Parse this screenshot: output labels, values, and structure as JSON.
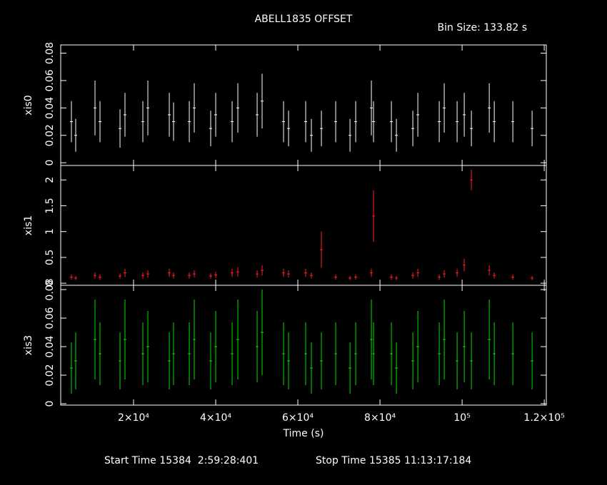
{
  "chart_data": {
    "type": "errorbar",
    "title": "ABELL1835 OFFSET",
    "subtitle": "Bin Size: 133.82 s",
    "xlabel": "Time (s)",
    "start_time": "Start Time 15384  2:59:28:401",
    "stop_time": "Stop Time 15385 11:13:17:184",
    "xlim": [
      2260,
      120500
    ],
    "xticks": [
      {
        "value": 20000,
        "label": "2×10⁴"
      },
      {
        "value": 40000,
        "label": "4×10⁴"
      },
      {
        "value": 60000,
        "label": "6×10⁴"
      },
      {
        "value": 80000,
        "label": "8×10⁴"
      },
      {
        "value": 100000,
        "label": "10⁵"
      },
      {
        "value": 120000,
        "label": "1.2×10⁵"
      }
    ],
    "x": [
      4870,
      5910,
      10610,
      11830,
      16700,
      17910,
      22260,
      23480,
      28700,
      29740,
      33570,
      34780,
      38780,
      40000,
      44000,
      45390,
      50090,
      51300,
      56520,
      57740,
      61910,
      63300,
      65740,
      69220,
      72700,
      74090,
      77910,
      78430,
      82780,
      84000,
      88000,
      89220,
      94430,
      95650,
      98780,
      100520,
      102260,
      106610,
      107830,
      112350,
      117040
    ],
    "panels": [
      {
        "ylabel": "xis0",
        "color": "#ffffff",
        "ylim": [
          -0.002,
          0.086
        ],
        "yticks": [
          0,
          0.02,
          0.04,
          0.06,
          0.08
        ],
        "values": [
          0.03,
          0.02,
          0.04,
          0.03,
          0.025,
          0.035,
          0.03,
          0.04,
          0.035,
          0.03,
          0.03,
          0.04,
          0.025,
          0.035,
          0.03,
          0.04,
          0.035,
          0.045,
          0.03,
          0.025,
          0.03,
          0.02,
          0.025,
          0.03,
          0.02,
          0.03,
          0.04,
          0.03,
          0.03,
          0.02,
          0.025,
          0.035,
          0.03,
          0.04,
          0.03,
          0.035,
          0.025,
          0.04,
          0.03,
          0.03,
          0.025
        ],
        "errors": [
          0.015,
          0.012,
          0.02,
          0.015,
          0.014,
          0.016,
          0.015,
          0.02,
          0.016,
          0.014,
          0.015,
          0.018,
          0.013,
          0.016,
          0.015,
          0.018,
          0.016,
          0.02,
          0.015,
          0.013,
          0.015,
          0.012,
          0.013,
          0.015,
          0.012,
          0.015,
          0.02,
          0.015,
          0.015,
          0.012,
          0.013,
          0.016,
          0.015,
          0.018,
          0.015,
          0.016,
          0.013,
          0.018,
          0.015,
          0.015,
          0.013
        ]
      },
      {
        "ylabel": "xis1",
        "color": "#ff2020",
        "ylim": [
          -0.04,
          2.28
        ],
        "yticks": [
          0,
          0.5,
          1,
          1.5,
          2
        ],
        "values": [
          0.12,
          0.1,
          0.15,
          0.12,
          0.14,
          0.2,
          0.15,
          0.18,
          0.2,
          0.15,
          0.15,
          0.18,
          0.14,
          0.16,
          0.2,
          0.22,
          0.18,
          0.25,
          0.2,
          0.18,
          0.2,
          0.15,
          0.65,
          0.12,
          0.1,
          0.12,
          0.2,
          1.3,
          0.12,
          0.1,
          0.15,
          0.2,
          0.12,
          0.18,
          0.2,
          0.35,
          2.0,
          0.25,
          0.15,
          0.12,
          0.1
        ],
        "errors": [
          0.05,
          0.04,
          0.06,
          0.05,
          0.05,
          0.08,
          0.06,
          0.07,
          0.08,
          0.06,
          0.06,
          0.07,
          0.05,
          0.06,
          0.08,
          0.09,
          0.07,
          0.1,
          0.08,
          0.07,
          0.08,
          0.06,
          0.35,
          0.05,
          0.04,
          0.05,
          0.08,
          0.5,
          0.05,
          0.04,
          0.06,
          0.08,
          0.05,
          0.07,
          0.08,
          0.12,
          0.2,
          0.1,
          0.06,
          0.05,
          0.04
        ]
      },
      {
        "ylabel": "xis3",
        "color": "#00e000",
        "ylim": [
          -0.001,
          0.083
        ],
        "yticks": [
          0,
          0.02,
          0.04,
          0.06,
          0.08
        ],
        "values": [
          0.025,
          0.03,
          0.045,
          0.035,
          0.03,
          0.045,
          0.035,
          0.04,
          0.03,
          0.035,
          0.035,
          0.045,
          0.03,
          0.04,
          0.035,
          0.045,
          0.04,
          0.05,
          0.035,
          0.03,
          0.035,
          0.025,
          0.03,
          0.035,
          0.025,
          0.035,
          0.045,
          0.035,
          0.035,
          0.025,
          0.03,
          0.04,
          0.035,
          0.045,
          0.03,
          0.04,
          0.03,
          0.045,
          0.035,
          0.035,
          0.03
        ],
        "errors": [
          0.018,
          0.02,
          0.028,
          0.022,
          0.02,
          0.028,
          0.022,
          0.025,
          0.02,
          0.022,
          0.022,
          0.028,
          0.02,
          0.025,
          0.022,
          0.028,
          0.025,
          0.03,
          0.022,
          0.02,
          0.022,
          0.018,
          0.02,
          0.022,
          0.018,
          0.022,
          0.028,
          0.022,
          0.022,
          0.018,
          0.02,
          0.025,
          0.022,
          0.028,
          0.02,
          0.025,
          0.02,
          0.028,
          0.022,
          0.022,
          0.02
        ]
      }
    ]
  }
}
